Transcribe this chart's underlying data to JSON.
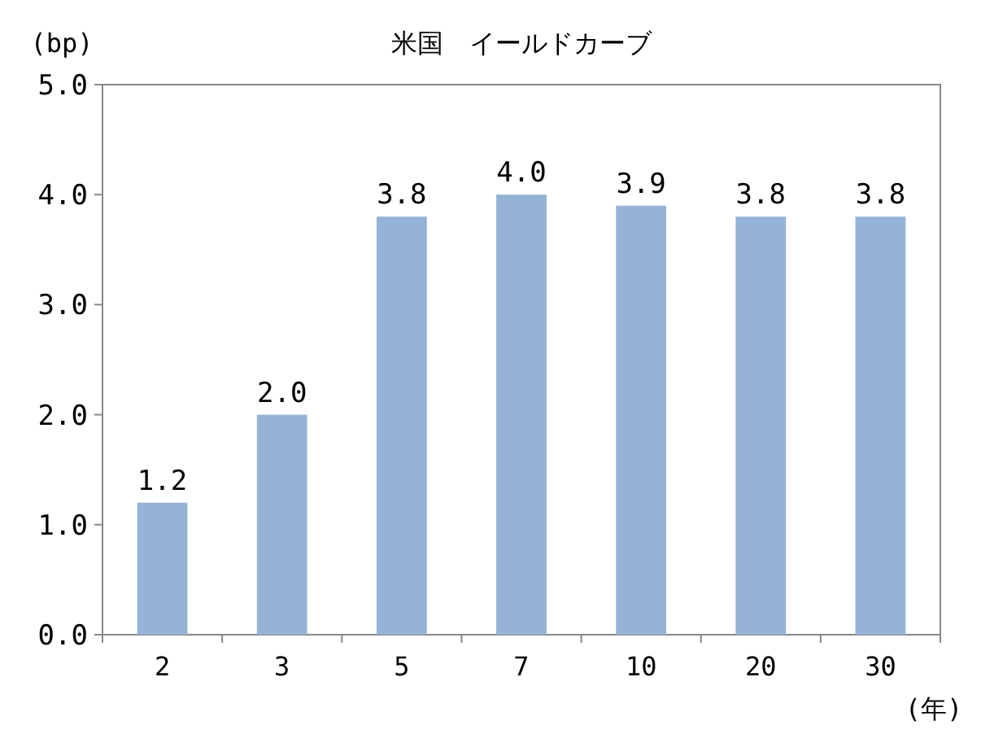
{
  "chart_data": {
    "type": "bar",
    "title": "米国　イールドカーブ",
    "ylabel": "(bp)",
    "xlabel": "(年)",
    "categories": [
      "2",
      "3",
      "5",
      "7",
      "10",
      "20",
      "30"
    ],
    "values": [
      1.2,
      2.0,
      3.8,
      4.0,
      3.9,
      3.8,
      3.8
    ],
    "value_labels": [
      "1.2",
      "2.0",
      "3.8",
      "4.0",
      "3.9",
      "3.8",
      "3.8"
    ],
    "color": "#95b3d7",
    "ylim": [
      0,
      5
    ],
    "yticks": [
      {
        "value": 0,
        "label": "0.0"
      },
      {
        "value": 1,
        "label": "1.0"
      },
      {
        "value": 2,
        "label": "2.0"
      },
      {
        "value": 3,
        "label": "3.0"
      },
      {
        "value": 4,
        "label": "4.0"
      },
      {
        "value": 5,
        "label": "5.0"
      }
    ]
  }
}
